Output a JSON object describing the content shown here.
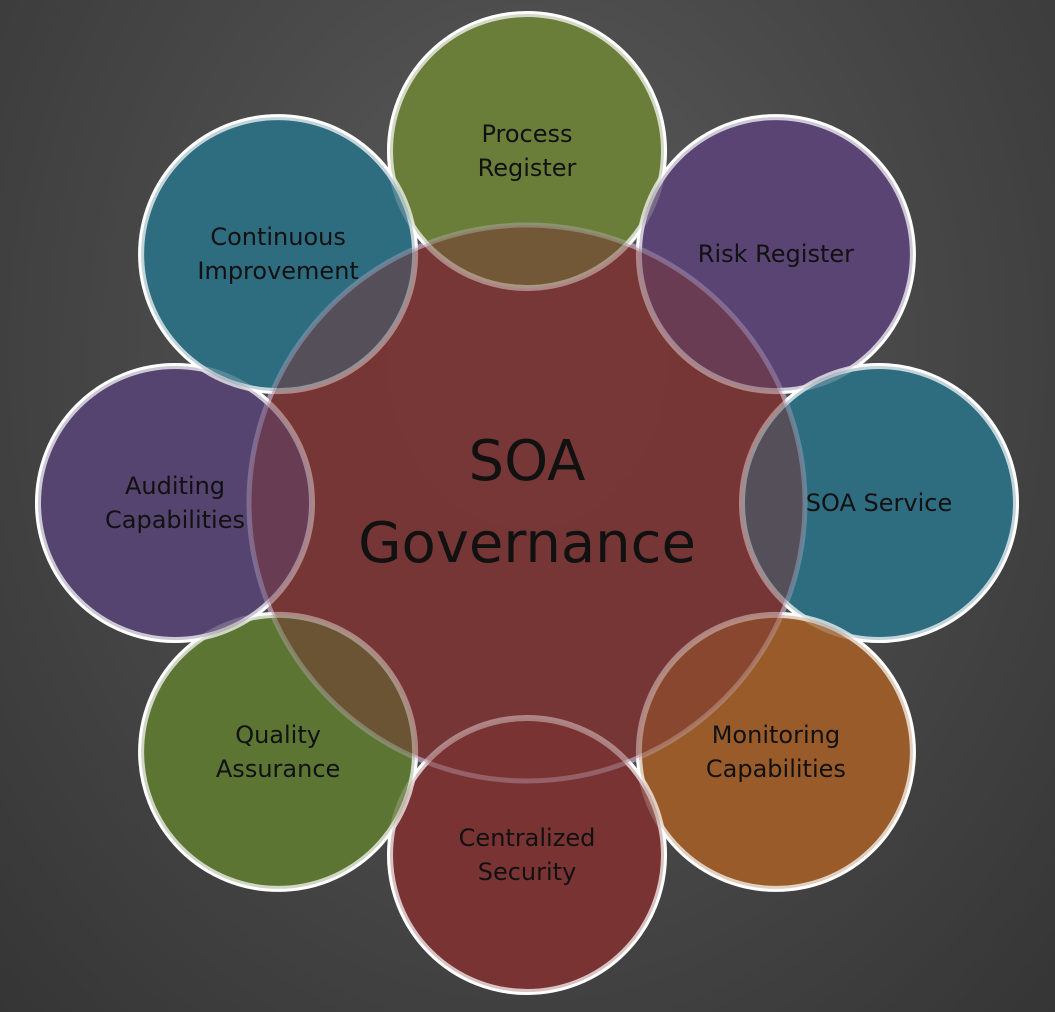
{
  "diagram": {
    "hub": {
      "lines": [
        "SOA",
        "Governance"
      ],
      "color": "#7a3434"
    },
    "nodes": [
      {
        "id": "process-register",
        "lines": [
          "Process",
          "Register"
        ],
        "color": "#6b7f3a"
      },
      {
        "id": "risk-register",
        "lines": [
          "Risk Register"
        ],
        "color": "#5a4474"
      },
      {
        "id": "soa-service",
        "lines": [
          "SOA Service"
        ],
        "color": "#2f6d80"
      },
      {
        "id": "monitoring-capabilities",
        "lines": [
          "Monitoring",
          "Capabilities"
        ],
        "color": "#9a5c2a"
      },
      {
        "id": "centralized-security",
        "lines": [
          "Centralized",
          "Security"
        ],
        "color": "#7a3434"
      },
      {
        "id": "quality-assurance",
        "lines": [
          "Quality",
          "Assurance"
        ],
        "color": "#5e7534"
      },
      {
        "id": "auditing-capabilities",
        "lines": [
          "Auditing",
          "Capabilities"
        ],
        "color": "#574470"
      },
      {
        "id": "continuous-improvement",
        "lines": [
          "Continuous",
          "Improvement"
        ],
        "color": "#2f6d80"
      }
    ],
    "outline_color": "#ffffff"
  }
}
